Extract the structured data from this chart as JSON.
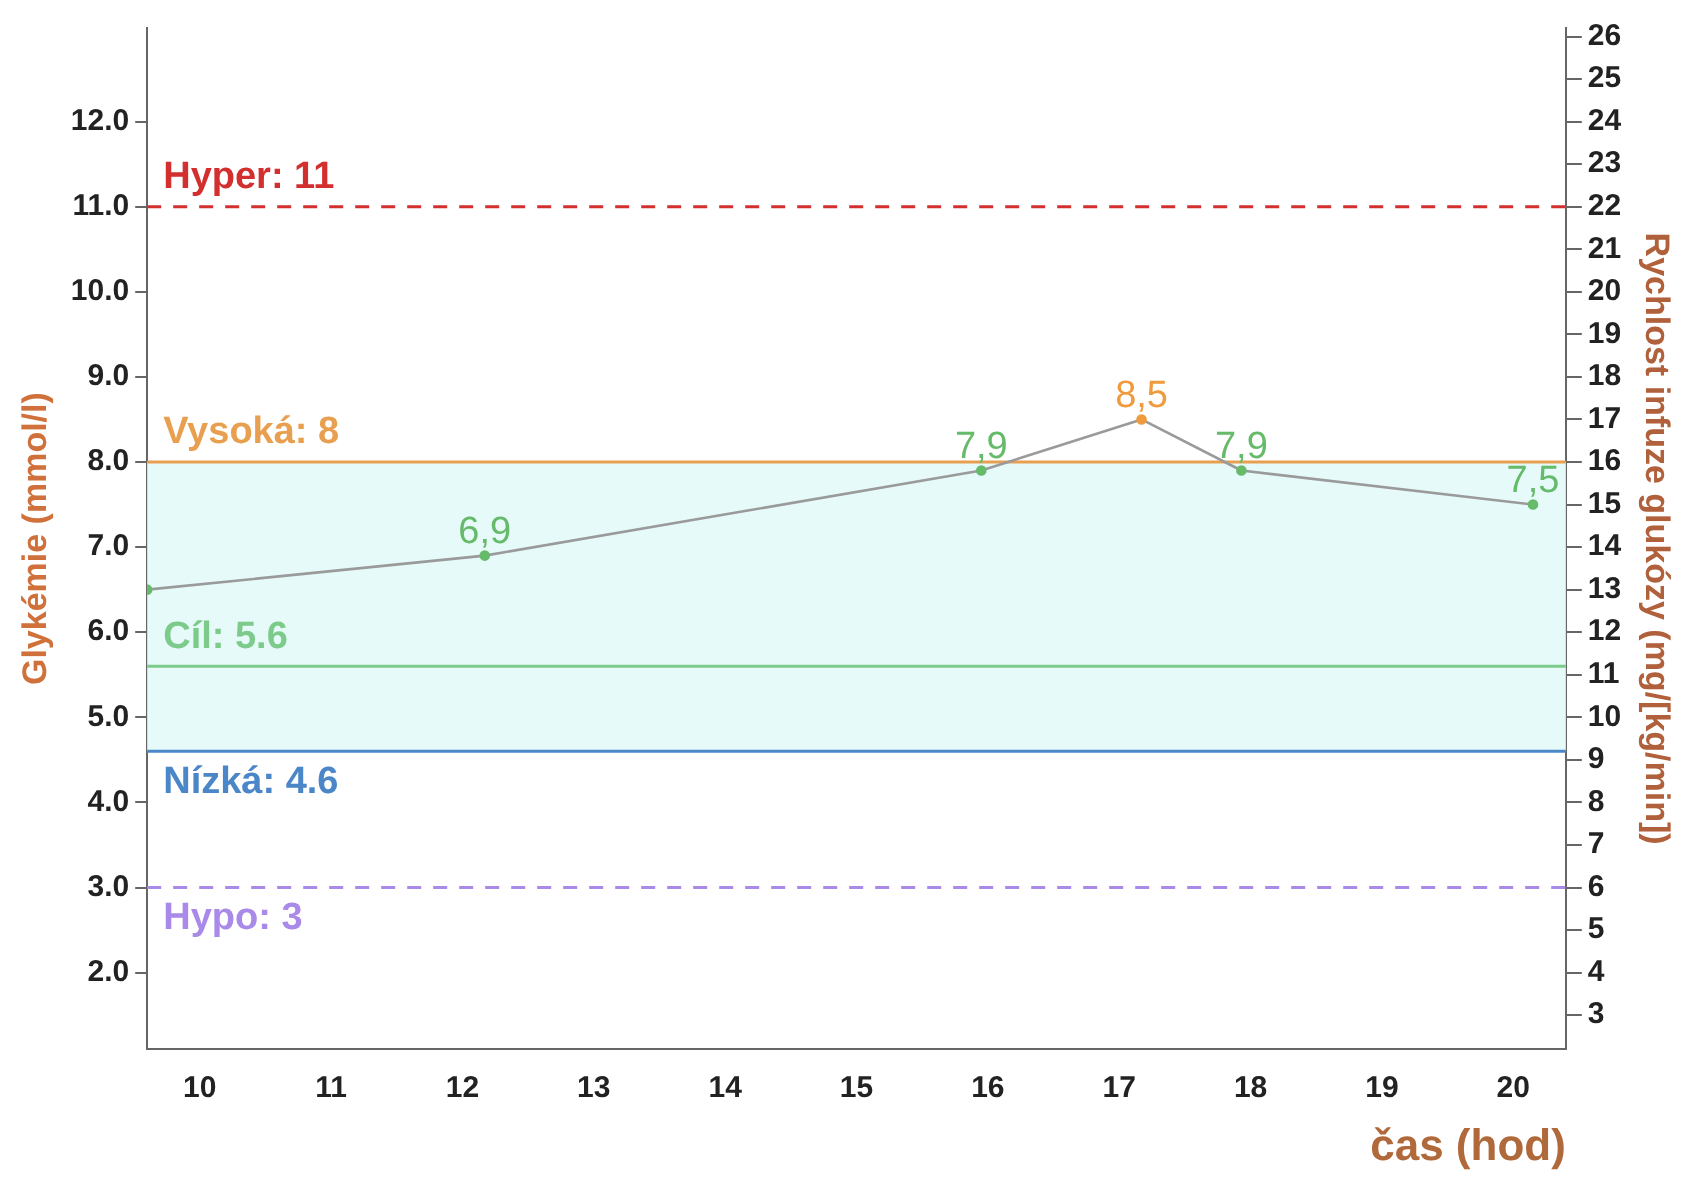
{
  "chart_data": {
    "type": "line",
    "xlabel": "čas (hod)",
    "ylabel": "Glykémie (mmol/l)",
    "y2label": "Rychlost infuze glukózy (mg/[kg/min])",
    "x": [
      9.6,
      12.17,
      15.95,
      17.17,
      17.93,
      20.15
    ],
    "series": [
      {
        "color": "#9a9a9a",
        "values": [
          6.5,
          6.9,
          7.9,
          8.5,
          7.9,
          7.5
        ],
        "colors": [
          "#66bb6a",
          "#66bb6a",
          "#66bb6a",
          "#ef9a3c",
          "#66bb6a",
          "#66bb6a"
        ],
        "value_labels": [
          null,
          "6,9",
          "7,9",
          "8,5",
          "7,9",
          "7,5"
        ]
      }
    ],
    "xlim": [
      9.6,
      20.4
    ],
    "xticks": [
      10,
      11,
      12,
      13,
      14,
      15,
      16,
      17,
      18,
      19,
      20
    ],
    "ylim": [
      1.1,
      13.1
    ],
    "yticks": [
      {
        "value": 2,
        "label": "2.0"
      },
      {
        "value": 3,
        "label": "3.0"
      },
      {
        "value": 4,
        "label": "4.0"
      },
      {
        "value": 5,
        "label": "5.0"
      },
      {
        "value": 6,
        "label": "6.0"
      },
      {
        "value": 7,
        "label": "7.0"
      },
      {
        "value": 8,
        "label": "8.0"
      },
      {
        "value": 9,
        "label": "9.0"
      },
      {
        "value": 10,
        "label": "10.0"
      },
      {
        "value": 11,
        "label": "11.0"
      },
      {
        "value": 12,
        "label": "12.0"
      }
    ],
    "y2lim": [
      2.2,
      26.2
    ],
    "y2ticks": [
      3,
      4,
      5,
      6,
      7,
      8,
      9,
      10,
      11,
      12,
      13,
      14,
      15,
      16,
      17,
      18,
      19,
      20,
      21,
      22,
      23,
      24,
      25,
      26
    ],
    "ref_lines": [
      {
        "axis": "y",
        "value": 11,
        "label": "Hyper: 11",
        "color": "#d32f2f",
        "line_style": "dashed"
      },
      {
        "axis": "y",
        "value": 8,
        "label": "Vysoká: 8",
        "color": "#e8a050",
        "line_style": "solid"
      },
      {
        "axis": "y",
        "value": 5.6,
        "label": "Cíl: 5.6",
        "color": "#7ccb8a",
        "line_style": "solid"
      },
      {
        "axis": "y",
        "value": 4.6,
        "label": "Nízká: 4.6",
        "color": "#4a86c8",
        "line_style": "solid"
      },
      {
        "axis": "y",
        "value": 3,
        "label": "Hypo: 3",
        "color": "#a98ae8",
        "line_style": "dashed"
      }
    ],
    "bands": [
      {
        "axis": "y",
        "from": 4.6,
        "to": 8,
        "color": "#e6fafa"
      }
    ],
    "marker": "circle",
    "grid": false,
    "legend": false
  }
}
